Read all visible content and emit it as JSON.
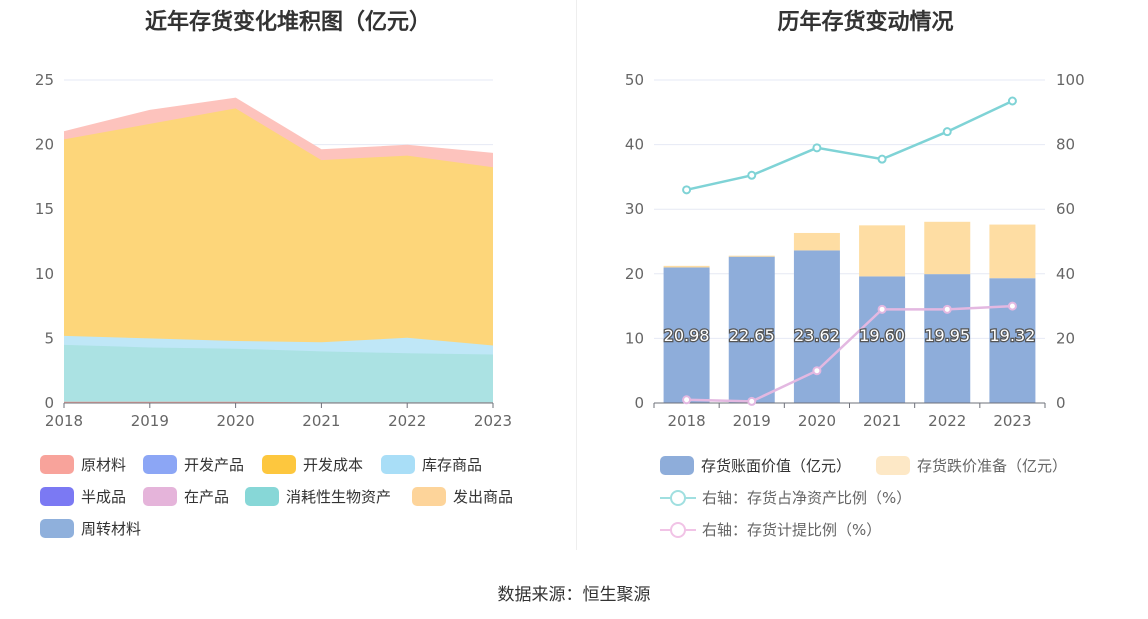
{
  "left_title": "近年存货变化堆积图（亿元）",
  "right_title": "历年存货变动情况",
  "source": "数据来源：恒生聚源",
  "left_legend": [
    {
      "label": "原材料",
      "color": "#f8a39b"
    },
    {
      "label": "开发产品",
      "color": "#8ca6f5"
    },
    {
      "label": "开发成本",
      "color": "#fdc73e"
    },
    {
      "label": "库存商品",
      "color": "#a9def7"
    },
    {
      "label": "半成品",
      "color": "#7b79f3"
    },
    {
      "label": "在产品",
      "color": "#e5b4da"
    },
    {
      "label": "消耗性生物资产",
      "color": "#87d7d7"
    },
    {
      "label": "发出商品",
      "color": "#fdd49a"
    },
    {
      "label": "周转材料",
      "color": "#8fb0dc"
    }
  ],
  "right_legend": [
    {
      "label": "存货账面价值（亿元）",
      "color": "#8eadda",
      "kind": "bar"
    },
    {
      "label": "存货跌价准备（亿元）",
      "color": "#fde8c6",
      "kind": "bar"
    },
    {
      "label": "右轴：存货占净资产比例（%）",
      "color": "#a0dfe0",
      "kind": "line"
    },
    {
      "label": "右轴：存货计提比例（%）",
      "color": "#f1c3e6",
      "kind": "line"
    }
  ],
  "chart_data": [
    {
      "type": "area",
      "title": "近年存货变化堆积图（亿元）",
      "x": [
        "2018",
        "2019",
        "2020",
        "2021",
        "2022",
        "2023"
      ],
      "ylim": [
        0,
        25
      ],
      "yticks": [
        0,
        5,
        10,
        15,
        20,
        25
      ],
      "series": [
        {
          "name": "原材料",
          "color": "#f8a39b",
          "fill": "#f8a39b",
          "values": [
            0.1,
            0.1,
            0.1,
            0.05,
            0.05,
            0.05
          ]
        },
        {
          "name": "消耗性生物资产",
          "color": "#87d7d7",
          "fill": "#abe2e3",
          "values": [
            4.4,
            4.2,
            4.1,
            3.95,
            3.8,
            3.7
          ]
        },
        {
          "name": "库存商品",
          "color": "#a9def7",
          "fill": "#bfe7f7",
          "values": [
            0.7,
            0.7,
            0.6,
            0.7,
            1.2,
            0.7
          ]
        },
        {
          "name": "开发成本",
          "color": "#fdc73e",
          "fill": "#fdd67a",
          "values": [
            15.2,
            16.6,
            18.0,
            14.1,
            14.1,
            13.8
          ]
        },
        {
          "name": "发出商品",
          "color": "#fdd49a",
          "fill": "#fdc3bd",
          "values": [
            0.6,
            1.05,
            0.8,
            0.8,
            0.8,
            1.07
          ]
        }
      ]
    },
    {
      "type": "bar",
      "title": "历年存货变动情况",
      "categories": [
        "2018",
        "2019",
        "2020",
        "2021",
        "2022",
        "2023"
      ],
      "ylim": [
        0,
        50
      ],
      "yticks": [
        0,
        10,
        20,
        30,
        40,
        50
      ],
      "y2lim": [
        0,
        100
      ],
      "y2ticks": [
        0,
        20,
        40,
        60,
        80,
        100
      ],
      "series": [
        {
          "name": "存货账面价值（亿元）",
          "color": "#8eadda",
          "values": [
            20.98,
            22.65,
            23.62,
            19.6,
            19.95,
            19.32
          ],
          "labels": [
            "20.98",
            "22.65",
            "23.62",
            "19.60",
            "19.95",
            "19.32"
          ]
        },
        {
          "name": "存货跌价准备（亿元）",
          "color": "#fedda3",
          "values": [
            0.25,
            0.15,
            2.7,
            7.9,
            8.1,
            8.3
          ]
        }
      ],
      "line_series": [
        {
          "name": "右轴：存货占净资产比例（%）",
          "color": "#7fd3d6",
          "values": [
            66,
            70.5,
            79,
            75.5,
            84,
            93.5
          ]
        },
        {
          "name": "右轴：存货计提比例（%）",
          "color": "#e3b8e1",
          "values": [
            1,
            0.5,
            10,
            29,
            29,
            30
          ]
        }
      ]
    }
  ]
}
